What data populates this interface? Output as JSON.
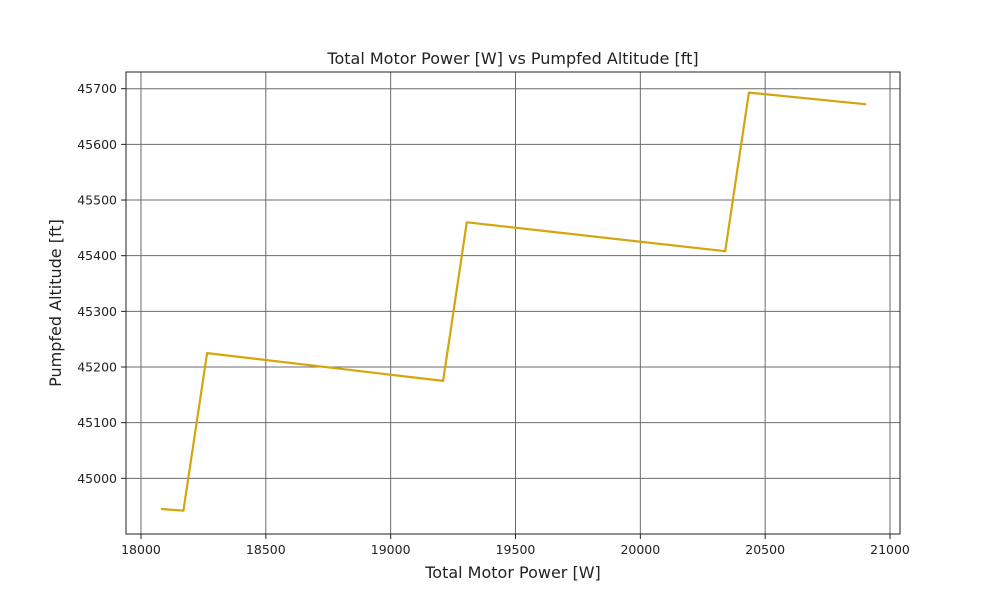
{
  "chart_data": {
    "type": "line",
    "title": "Total Motor Power [W] vs Pumpfed Altitude [ft]",
    "xlabel": "Total Motor Power [W]",
    "ylabel": "Pumpfed Altitude [ft]",
    "xlim": [
      17940,
      21040
    ],
    "ylim": [
      44900,
      45730
    ],
    "xticks": [
      18000,
      18500,
      19000,
      19500,
      20000,
      20500,
      21000
    ],
    "yticks": [
      45000,
      45100,
      45200,
      45300,
      45400,
      45500,
      45600,
      45700
    ],
    "grid": true,
    "series": [
      {
        "color": "#d4a60e",
        "x": [
          18080,
          18170,
          18265,
          19210,
          19305,
          20340,
          20435,
          20905
        ],
        "y": [
          44945,
          44942,
          45225,
          45175,
          45460,
          45408,
          45693,
          45672
        ]
      }
    ]
  }
}
